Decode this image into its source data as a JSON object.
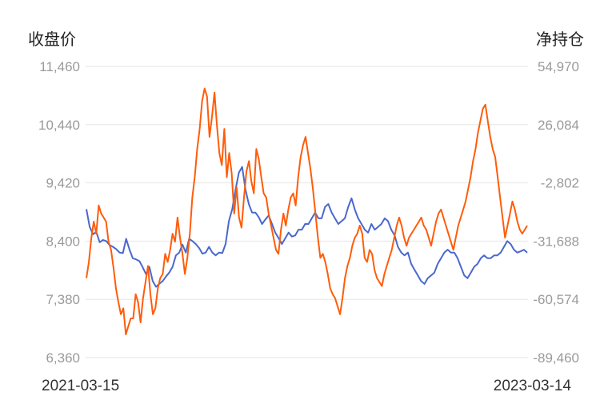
{
  "chart_data": {
    "type": "line",
    "left_axis_title": "收盘价",
    "right_axis_title": "净持仓",
    "y_left": {
      "ticks": [
        "11,460",
        "10,440",
        "9,420",
        "8,400",
        "7,380",
        "6,360"
      ],
      "range": [
        6360,
        11460
      ]
    },
    "y_right": {
      "ticks": [
        "54,970",
        "26,084",
        "-2,802",
        "-31,688",
        "-60,574",
        "-89,460"
      ],
      "range": [
        -89460,
        54970
      ]
    },
    "x_labels": [
      "2021-03-15",
      "2023-03-14"
    ],
    "grid": true,
    "series": [
      {
        "axis": "left",
        "color": "#4a68cc",
        "values": [
          8960,
          8650,
          8520,
          8560,
          8380,
          8420,
          8400,
          8330,
          8300,
          8260,
          8200,
          8190,
          8440,
          8250,
          8100,
          8080,
          8050,
          7940,
          7820,
          7950,
          7700,
          7600,
          7650,
          7700,
          7780,
          7850,
          7950,
          8150,
          8200,
          8340,
          8200,
          8440,
          8400,
          8350,
          8280,
          8180,
          8200,
          8300,
          8200,
          8150,
          8200,
          8190,
          8350,
          8750,
          8960,
          9300,
          9600,
          9700,
          9300,
          9050,
          8900,
          8900,
          8820,
          8700,
          8780,
          8850,
          8700,
          8550,
          8450,
          8350,
          8450,
          8550,
          8480,
          8500,
          8600,
          8600,
          8700,
          8700,
          8800,
          8900,
          8800,
          8800,
          9000,
          9050,
          8900,
          8800,
          8700,
          8750,
          8800,
          9000,
          9150,
          8950,
          8800,
          8700,
          8600,
          8550,
          8700,
          8600,
          8650,
          8700,
          8800,
          8750,
          8600,
          8500,
          8300,
          8200,
          8150,
          8200,
          8000,
          7900,
          7800,
          7700,
          7650,
          7750,
          7800,
          7850,
          8000,
          8100,
          8200,
          8250,
          8200,
          8200,
          8100,
          7950,
          7800,
          7750,
          7850,
          7950,
          8000,
          8100,
          8150,
          8100,
          8100,
          8150,
          8150,
          8200,
          8300,
          8400,
          8350,
          8250,
          8200,
          8220,
          8250,
          8200
        ]
      },
      {
        "axis": "right",
        "color": "#ff5c0a",
        "values": [
          -50000,
          -42000,
          -30000,
          -22000,
          -28000,
          -14000,
          -18000,
          -20000,
          -22000,
          -32000,
          -36000,
          -45000,
          -55000,
          -62000,
          -68000,
          -65000,
          -78000,
          -74000,
          -70000,
          -70000,
          -58000,
          -62000,
          -72000,
          -60000,
          -52000,
          -44000,
          -58000,
          -68000,
          -65000,
          -55000,
          -50000,
          -48000,
          -38000,
          -42000,
          -36000,
          -28000,
          -32000,
          -20000,
          -30000,
          -38000,
          -48000,
          -40000,
          -28000,
          -10000,
          0,
          14000,
          24000,
          38000,
          44000,
          40000,
          20000,
          30000,
          42000,
          26000,
          12000,
          6000,
          24000,
          0,
          12000,
          2000,
          -18000,
          -5000,
          -20000,
          -25000,
          -10000,
          3000,
          8000,
          -2000,
          -8000,
          14000,
          9000,
          0,
          -8000,
          -10000,
          -18000,
          -24000,
          -30000,
          -36000,
          -38000,
          -26000,
          -18000,
          -24000,
          -16000,
          -10000,
          -8000,
          -14000,
          0,
          10000,
          16000,
          20000,
          12000,
          4000,
          -6000,
          -18000,
          -30000,
          -40000,
          -38000,
          -42000,
          -48000,
          -55000,
          -58000,
          -60000,
          -64000,
          -68000,
          -60000,
          -50000,
          -44000,
          -40000,
          -34000,
          -30000,
          -28000,
          -24000,
          -28000,
          -40000,
          -42000,
          -36000,
          -38000,
          -46000,
          -50000,
          -52000,
          -54000,
          -48000,
          -44000,
          -40000,
          -36000,
          -30000,
          -24000,
          -20000,
          -24000,
          -30000,
          -34000,
          -30000,
          -28000,
          -26000,
          -24000,
          -22000,
          -20000,
          -24000,
          -26000,
          -30000,
          -34000,
          -28000,
          -22000,
          -18000,
          -16000,
          -20000,
          -24000,
          -28000,
          -32000,
          -36000,
          -30000,
          -24000,
          -20000,
          -16000,
          -12000,
          -6000,
          0,
          8000,
          14000,
          22000,
          28000,
          34000,
          36000,
          28000,
          20000,
          14000,
          10000,
          0,
          -10000,
          -20000,
          -30000,
          -24000,
          -18000,
          -12000,
          -16000,
          -22000,
          -26000,
          -28000,
          -26000,
          -24000
        ]
      }
    ]
  }
}
